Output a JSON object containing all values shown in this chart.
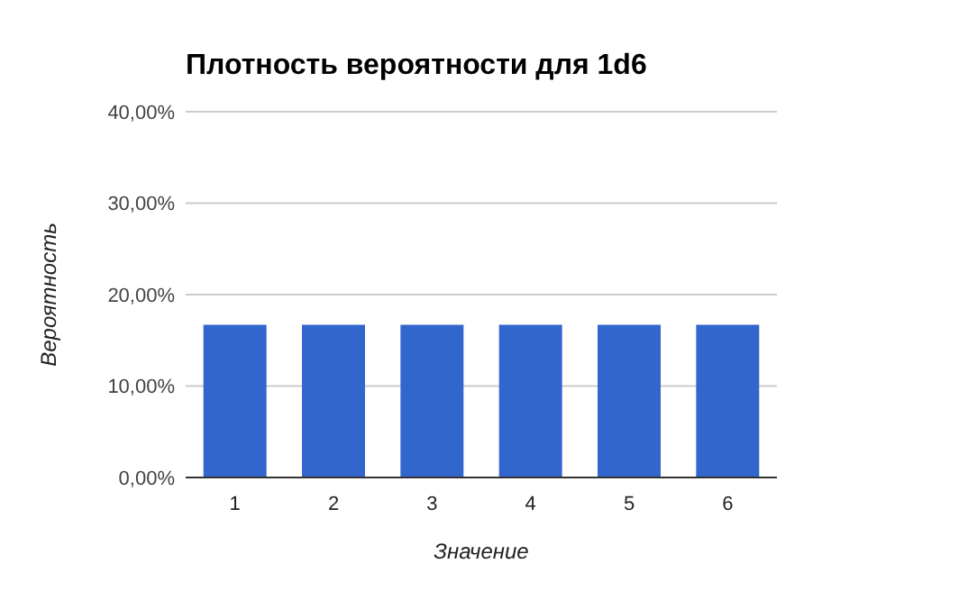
{
  "chart_data": {
    "type": "bar",
    "title": "Плотность вероятности для 1d6",
    "xlabel": "Значение",
    "ylabel": "Вероятность",
    "categories": [
      "1",
      "2",
      "3",
      "4",
      "5",
      "6"
    ],
    "values": [
      16.7,
      16.7,
      16.7,
      16.7,
      16.7,
      16.7
    ],
    "color": "#3366cc",
    "ylim": [
      0,
      40
    ],
    "yticks": [
      {
        "value": 0,
        "label": "0,00%"
      },
      {
        "value": 10,
        "label": "10,00%"
      },
      {
        "value": 20,
        "label": "20,00%"
      },
      {
        "value": 30,
        "label": "30,00%"
      },
      {
        "value": 40,
        "label": "40,00%"
      }
    ],
    "grid": "y"
  }
}
